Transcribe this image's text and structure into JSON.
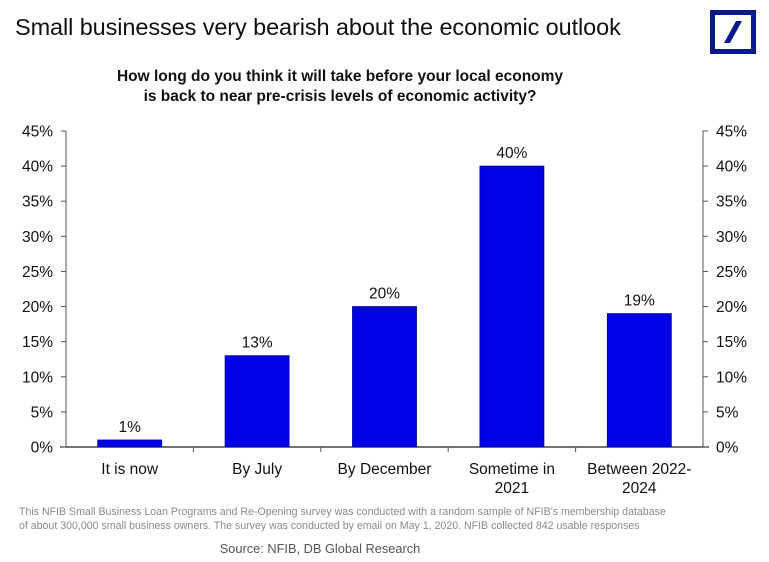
{
  "header": {
    "title": "Small businesses very bearish about the economic outlook",
    "logo": "deutsche-bank-logo"
  },
  "chart_data": {
    "type": "bar",
    "title": "How long do you think it will take before your local economy is back to near pre-crisis levels of economic activity?",
    "title_lines": [
      "How long do you think it will take before your local economy",
      "is back to near pre-crisis levels of economic activity?"
    ],
    "categories": [
      [
        "It is now"
      ],
      [
        "By July"
      ],
      [
        "By December"
      ],
      [
        "Sometime in",
        "2021"
      ],
      [
        "Between 2022-",
        "2024"
      ]
    ],
    "values": [
      1,
      13,
      20,
      40,
      19
    ],
    "data_labels": [
      "1%",
      "13%",
      "20%",
      "40%",
      "19%"
    ],
    "ylim": [
      0,
      45
    ],
    "yticks": [
      0,
      5,
      10,
      15,
      20,
      25,
      30,
      35,
      40,
      45
    ],
    "ytick_labels": [
      "0%",
      "5%",
      "10%",
      "15%",
      "20%",
      "25%",
      "30%",
      "35%",
      "40%",
      "45%"
    ],
    "secondary_axis": "right",
    "xlabel": "",
    "ylabel": "",
    "grid": false,
    "legend": "none",
    "bar_color": "#0000e6"
  },
  "footer": {
    "note_lines": [
      "This NFIB Small Business Loan Programs and Re-Opening survey was conducted with a random sample of NFIB's membership database",
      "of about 300,000 small business owners. The survey was conducted by email on May 1, 2020. NFIB collected 842 usable responses"
    ],
    "source": "Source: NFIB, DB Global Research"
  }
}
